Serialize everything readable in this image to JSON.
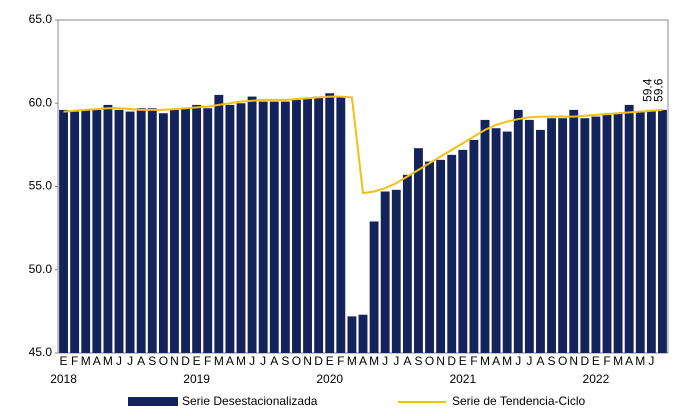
{
  "chart_data": {
    "type": "bar+line",
    "categories": [
      "E",
      "F",
      "M",
      "A",
      "M",
      "J",
      "J",
      "A",
      "S",
      "O",
      "N",
      "D",
      "E",
      "F",
      "M",
      "A",
      "M",
      "J",
      "J",
      "A",
      "S",
      "O",
      "N",
      "D",
      "E",
      "F",
      "M",
      "A",
      "M",
      "J",
      "J",
      "A",
      "S",
      "O",
      "N",
      "D",
      "E",
      "F",
      "M",
      "A",
      "M",
      "J",
      "J",
      "A",
      "S",
      "O",
      "N",
      "D",
      "E",
      "F",
      "M",
      "A",
      "M",
      "J",
      null
    ],
    "years": [
      "2018",
      "2019",
      "2020",
      "2021",
      "2022"
    ],
    "series": [
      {
        "name": "Serie Desestacionalizada",
        "type": "bar",
        "color": "#14245a",
        "values": [
          59.6,
          59.5,
          59.6,
          59.6,
          59.9,
          59.6,
          59.5,
          59.7,
          59.7,
          59.4,
          59.6,
          59.7,
          59.9,
          59.7,
          60.5,
          59.9,
          60.0,
          60.4,
          60.1,
          60.1,
          60.1,
          60.2,
          60.3,
          60.4,
          60.6,
          60.4,
          47.2,
          47.3,
          52.9,
          54.7,
          54.8,
          55.7,
          57.3,
          56.5,
          56.6,
          56.9,
          57.2,
          57.8,
          59.0,
          58.5,
          58.3,
          59.6,
          59.0,
          58.4,
          59.1,
          59.1,
          59.6,
          59.1,
          59.2,
          59.3,
          59.4,
          59.9,
          59.5,
          59.6,
          59.6
        ]
      },
      {
        "name": "Serie de Tendencia-Ciclo",
        "type": "line",
        "color": "#f2c010",
        "values": [
          59.5,
          59.55,
          59.6,
          59.65,
          59.7,
          59.7,
          59.65,
          59.6,
          59.6,
          59.6,
          59.65,
          59.7,
          59.75,
          59.8,
          59.9,
          60.0,
          60.1,
          60.15,
          60.2,
          60.2,
          60.2,
          60.25,
          60.3,
          60.35,
          60.4,
          60.4,
          60.35,
          54.6,
          54.7,
          54.9,
          55.2,
          55.6,
          56.0,
          56.4,
          56.8,
          57.2,
          57.6,
          58.0,
          58.4,
          58.7,
          58.9,
          59.05,
          59.15,
          59.2,
          59.2,
          59.2,
          59.2,
          59.25,
          59.3,
          59.35,
          59.4,
          59.45,
          59.5,
          59.55,
          59.6
        ]
      }
    ],
    "annotations": [
      "59.4",
      "59.6"
    ],
    "ylim": [
      45,
      65
    ],
    "yticks": [
      {
        "value": 45,
        "label": "45.0"
      },
      {
        "value": 50,
        "label": "50.0"
      },
      {
        "value": 55,
        "label": "55.0"
      },
      {
        "value": 60,
        "label": "60.0"
      },
      {
        "value": 65,
        "label": "65.0"
      }
    ]
  }
}
